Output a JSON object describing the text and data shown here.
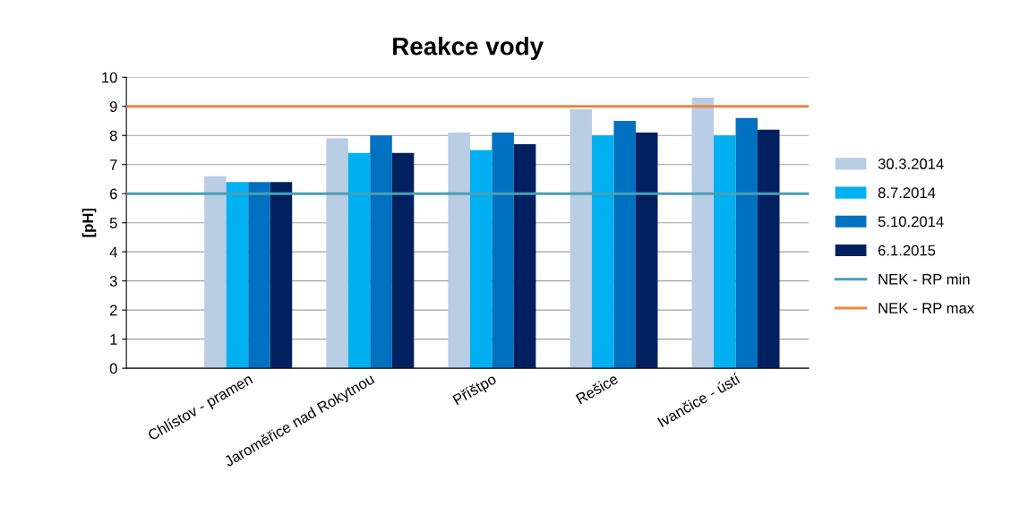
{
  "chart_data": {
    "type": "bar",
    "title": "Reakce vody",
    "ylabel": "[pH]",
    "categories": [
      "Chlístov - pramen",
      "Jaroměřice nad Rokytnou",
      "Příštpo",
      "Rešice",
      "Ivančice - ústí"
    ],
    "series": [
      {
        "name": "30.3.2014",
        "color": "#b9cde5",
        "values": [
          6.6,
          7.9,
          8.1,
          8.9,
          9.3
        ]
      },
      {
        "name": "8.7.2014",
        "color": "#00b0f0",
        "values": [
          6.4,
          7.4,
          7.5,
          8.0,
          8.0
        ]
      },
      {
        "name": "5.10.2014",
        "color": "#0070c0",
        "values": [
          6.4,
          8.0,
          8.1,
          8.5,
          8.6
        ]
      },
      {
        "name": "6.1.2015",
        "color": "#002060",
        "values": [
          6.4,
          7.4,
          7.7,
          8.1,
          8.2
        ]
      }
    ],
    "ref_lines": [
      {
        "axis": "y",
        "value": 6,
        "label": "NEK - RP min",
        "color": "#4a9fb5"
      },
      {
        "axis": "y",
        "value": 9,
        "label": "NEK - RP max",
        "color": "#f0843c"
      }
    ],
    "ylim": [
      0,
      10
    ],
    "yticks": [
      0,
      1,
      2,
      3,
      4,
      5,
      6,
      7,
      8,
      9,
      10
    ],
    "grid": "y",
    "legend": "right"
  }
}
